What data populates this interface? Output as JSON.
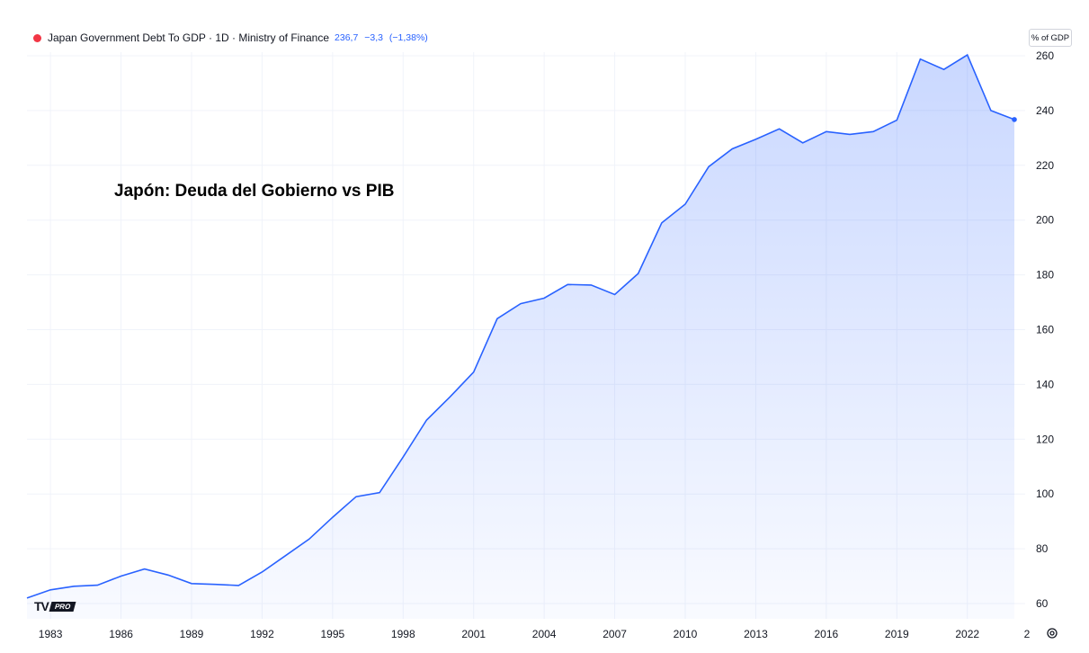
{
  "legend": {
    "title": "Japan Government Debt To GDP · 1D · Ministry of Finance",
    "last_value": "236,7",
    "change": "−3,3",
    "change_pct": "(−1,38%)"
  },
  "overlay_title": "Japón: Deuda del Gobierno vs PIB",
  "unit_label": "% of GDP",
  "logo": {
    "text": "TV",
    "badge": "PRO"
  },
  "colors": {
    "line": "#2962ff",
    "fill": "#2962ff",
    "legend_dot": "#f23645",
    "grid": "#f0f3fa"
  },
  "chart_data": {
    "type": "area",
    "title": "Japan Government Debt To GDP",
    "xlabel": "",
    "ylabel": "% of GDP",
    "x": [
      1982,
      1983,
      1984,
      1985,
      1986,
      1987,
      1988,
      1989,
      1990,
      1991,
      1992,
      1993,
      1994,
      1995,
      1996,
      1997,
      1998,
      1999,
      2000,
      2001,
      2002,
      2003,
      2004,
      2005,
      2006,
      2007,
      2008,
      2009,
      2010,
      2011,
      2012,
      2013,
      2014,
      2015,
      2016,
      2017,
      2018,
      2019,
      2020,
      2021,
      2022,
      2023,
      2024
    ],
    "y": [
      62.0,
      65.0,
      66.3,
      66.7,
      70.0,
      72.6,
      70.4,
      67.3,
      67.0,
      66.6,
      71.5,
      77.5,
      83.5,
      91.5,
      99.0,
      100.5,
      113.5,
      127.0,
      135.5,
      144.5,
      164.0,
      169.5,
      171.5,
      176.5,
      176.3,
      172.8,
      180.5,
      199.0,
      205.8,
      219.5,
      226.0,
      229.5,
      233.3,
      228.2,
      232.3,
      231.3,
      232.3,
      236.5,
      258.8,
      255.0,
      260.3,
      240.0,
      236.7
    ],
    "xticks": [
      "1983",
      "1986",
      "1989",
      "1992",
      "1995",
      "1998",
      "2001",
      "2004",
      "2007",
      "2010",
      "2013",
      "2016",
      "2019",
      "2022",
      "2"
    ],
    "ytick_labels": [
      "60",
      "80",
      "100",
      "120",
      "140",
      "160",
      "180",
      "200",
      "220",
      "240",
      "260"
    ],
    "ylim": [
      55,
      262
    ],
    "grid": true,
    "legend_position": "top-left"
  }
}
